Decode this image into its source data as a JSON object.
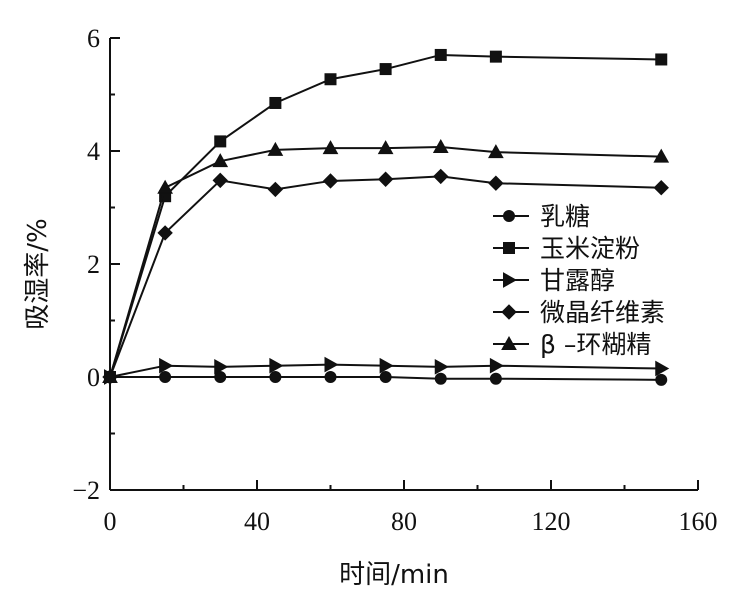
{
  "chart_data": {
    "type": "line",
    "title": "",
    "xlabel": "时间/min",
    "ylabel": "吸湿率/%",
    "xlim": [
      0,
      160
    ],
    "ylim": [
      -2,
      6
    ],
    "xticks": [
      0,
      40,
      80,
      120,
      160
    ],
    "yticks": [
      -2,
      0,
      2,
      4,
      6
    ],
    "x_tick_labels": [
      "0",
      "40",
      "80",
      "120",
      "160"
    ],
    "y_tick_labels": [
      "−2",
      "0",
      "2",
      "4",
      "6"
    ],
    "grid": false,
    "legend_position": "right",
    "series": [
      {
        "name": "乳糖",
        "marker": "circle",
        "x": [
          0,
          15,
          30,
          45,
          60,
          75,
          90,
          105,
          150
        ],
        "values": [
          0,
          0.0,
          0.0,
          0.0,
          0.0,
          0.0,
          -0.03,
          -0.03,
          -0.05
        ]
      },
      {
        "name": "玉米淀粉",
        "marker": "square",
        "x": [
          0,
          15,
          30,
          45,
          60,
          75,
          90,
          105,
          150
        ],
        "values": [
          0,
          3.2,
          4.17,
          4.85,
          5.27,
          5.45,
          5.7,
          5.67,
          5.62
        ]
      },
      {
        "name": "甘露醇",
        "marker": "triangle-right",
        "x": [
          0,
          15,
          30,
          45,
          60,
          75,
          90,
          105,
          150
        ],
        "values": [
          0,
          0.2,
          0.18,
          0.2,
          0.22,
          0.2,
          0.18,
          0.2,
          0.15
        ]
      },
      {
        "name": "微晶纤维素",
        "marker": "diamond",
        "x": [
          0,
          15,
          30,
          45,
          60,
          75,
          90,
          105,
          150
        ],
        "values": [
          0,
          2.55,
          3.48,
          3.32,
          3.47,
          3.5,
          3.55,
          3.43,
          3.35
        ]
      },
      {
        "name": "β –环糊精",
        "marker": "triangle-up",
        "x": [
          0,
          15,
          30,
          45,
          60,
          75,
          90,
          105,
          150
        ],
        "values": [
          0,
          3.35,
          3.82,
          4.02,
          4.05,
          4.05,
          4.07,
          3.98,
          3.9
        ]
      }
    ]
  }
}
